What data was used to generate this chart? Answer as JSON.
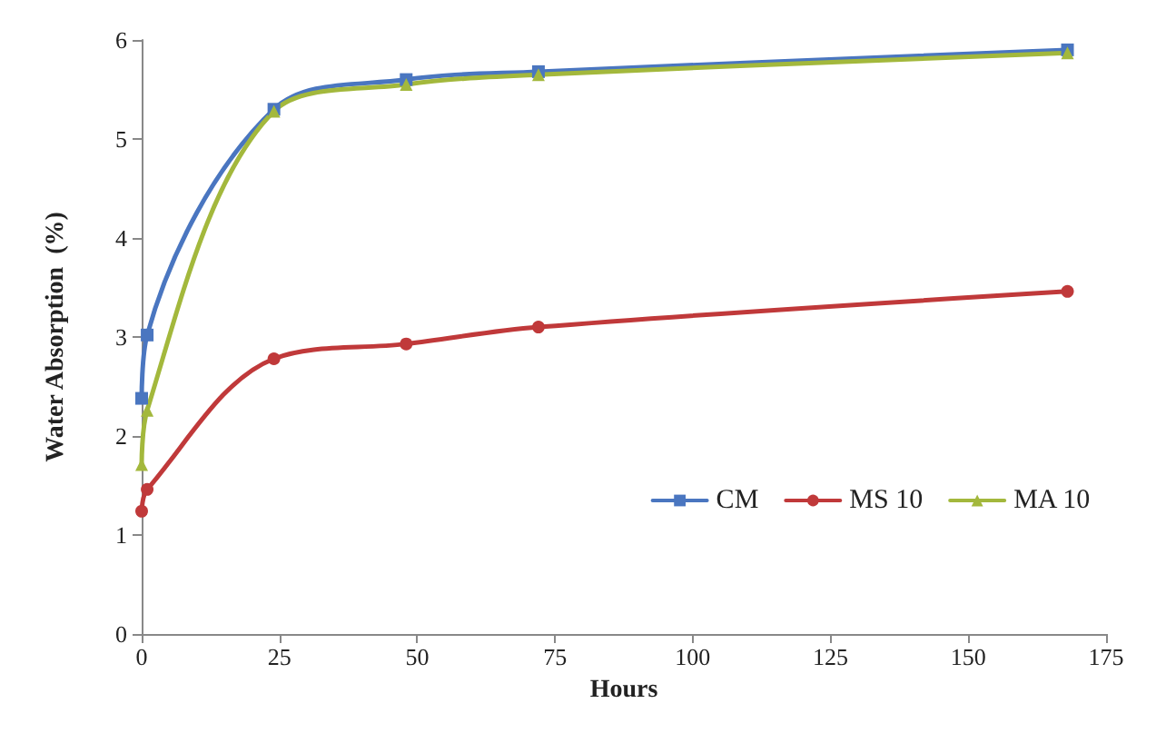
{
  "chart_data": {
    "type": "line",
    "xlabel": "Hours",
    "ylabel": "Water Absorption  (%)",
    "xlim": [
      0,
      175
    ],
    "xticks": [
      0,
      25,
      50,
      75,
      100,
      125,
      150,
      175
    ],
    "ylim": [
      0,
      6
    ],
    "yticks": [
      0,
      1,
      2,
      3,
      4,
      5,
      6
    ],
    "grid": false,
    "legend": "right",
    "line_style": "solid",
    "series": [
      {
        "name": "CM",
        "color": "#4a76c0",
        "marker": "square",
        "x": [
          0,
          1,
          24,
          48,
          72,
          168
        ],
        "values": [
          2.38,
          3.02,
          5.3,
          5.6,
          5.68,
          5.9
        ]
      },
      {
        "name": "MS 10",
        "color": "#c0393a",
        "marker": "circle",
        "x": [
          0,
          1,
          24,
          48,
          72,
          168
        ],
        "values": [
          1.24,
          1.46,
          2.78,
          2.93,
          3.1,
          3.46
        ]
      },
      {
        "name": "MA 10",
        "color": "#a3b83c",
        "marker": "triangle",
        "x": [
          0,
          1,
          24,
          48,
          72,
          168
        ],
        "values": [
          1.71,
          2.26,
          5.28,
          5.55,
          5.65,
          5.87
        ]
      }
    ]
  }
}
